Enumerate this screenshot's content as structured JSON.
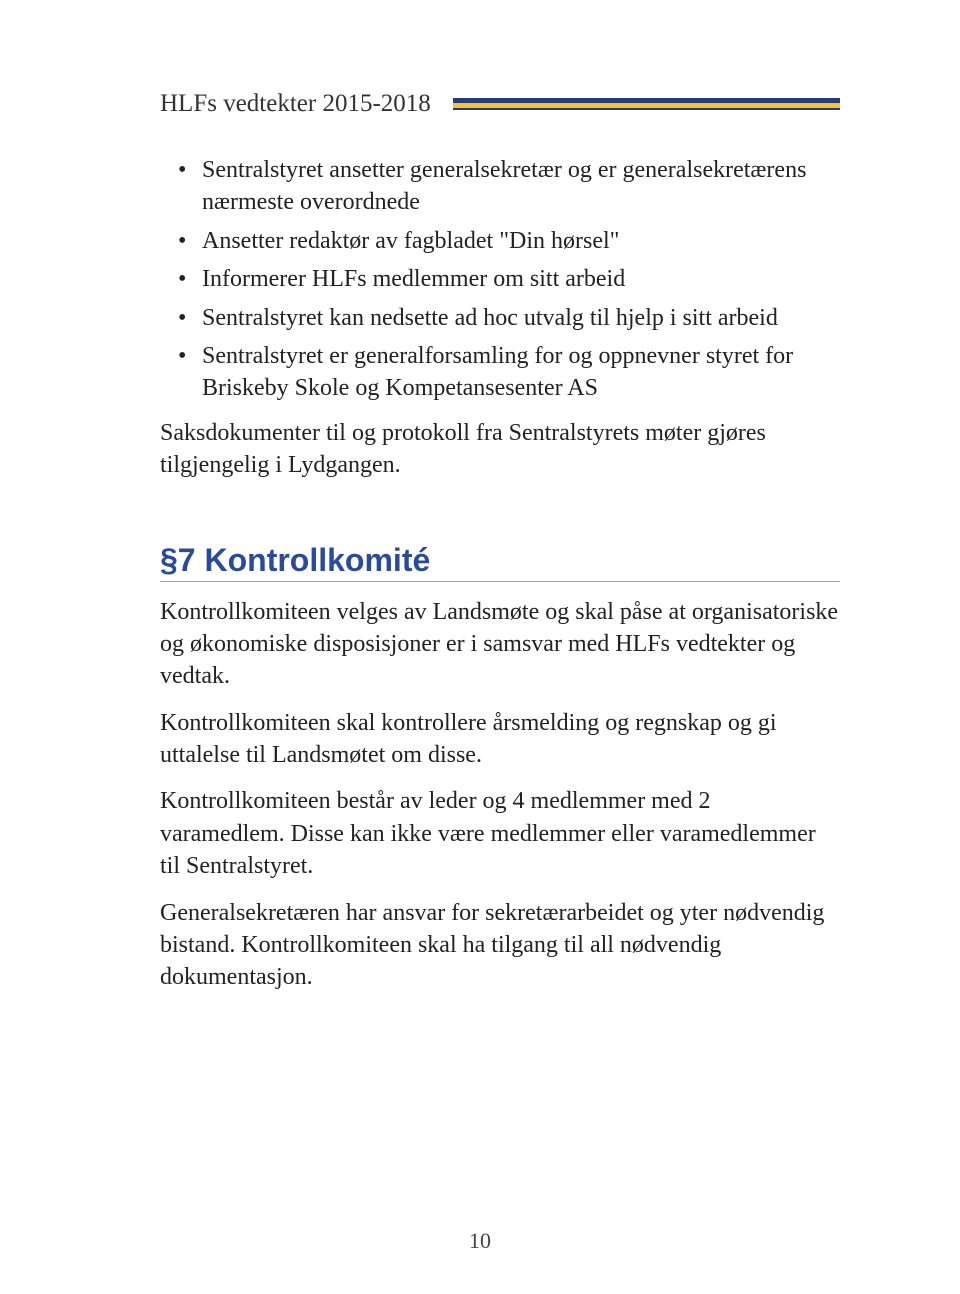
{
  "document": {
    "header_title": "HLFs vedtekter 2015-2018",
    "page_number": "10",
    "colors": {
      "heading": "#2a4b9b",
      "rule_blue": "#2a3b7c",
      "rule_yellow": "#f2c72c",
      "heading_underline": "#9aa4b8",
      "body_text": "#222222",
      "background": "#ffffff"
    },
    "typography": {
      "body_font": "Garamond / serif",
      "body_size_pt": 18,
      "heading_font": "Trebuchet MS / sans-serif",
      "heading_size_pt": 24
    },
    "bullets": [
      "Sentralstyret ansetter generalsekretær og er generalsekretærens nærmeste overordnede",
      "Ansetter redaktør av fagbladet \"Din hørsel\"",
      "Informerer HLFs medlemmer om sitt arbeid",
      "Sentralstyret kan nedsette ad hoc utvalg til hjelp i sitt arbeid",
      "Sentralstyret er generalforsamling for og oppnevner styret for Briskeby Skole og Kompetansesenter AS"
    ],
    "after_bullets_paragraph": "Saksdokumenter til og protokoll fra Sentralstyrets møter gjøres tilgjengelig i Lydgangen.",
    "section": {
      "heading": "§7 Kontrollkomité",
      "paragraphs": [
        "Kontrollkomiteen velges av Landsmøte og skal påse at organisatoriske og økonomiske disposisjoner er i samsvar med HLFs vedtekter og vedtak.",
        "Kontrollkomiteen skal kontrollere årsmelding og regnskap og gi uttalelse til Landsmøtet om disse.",
        "Kontrollkomiteen består av leder og 4 medlemmer med 2 varamedlem. Disse kan ikke være medlemmer eller varamedlemmer til Sentralstyret.",
        "Generalsekretæren har ansvar for sekretærarbeidet og yter nødvendig bistand. Kontrollkomiteen skal ha tilgang til all nødvendig dokumentasjon."
      ]
    }
  }
}
